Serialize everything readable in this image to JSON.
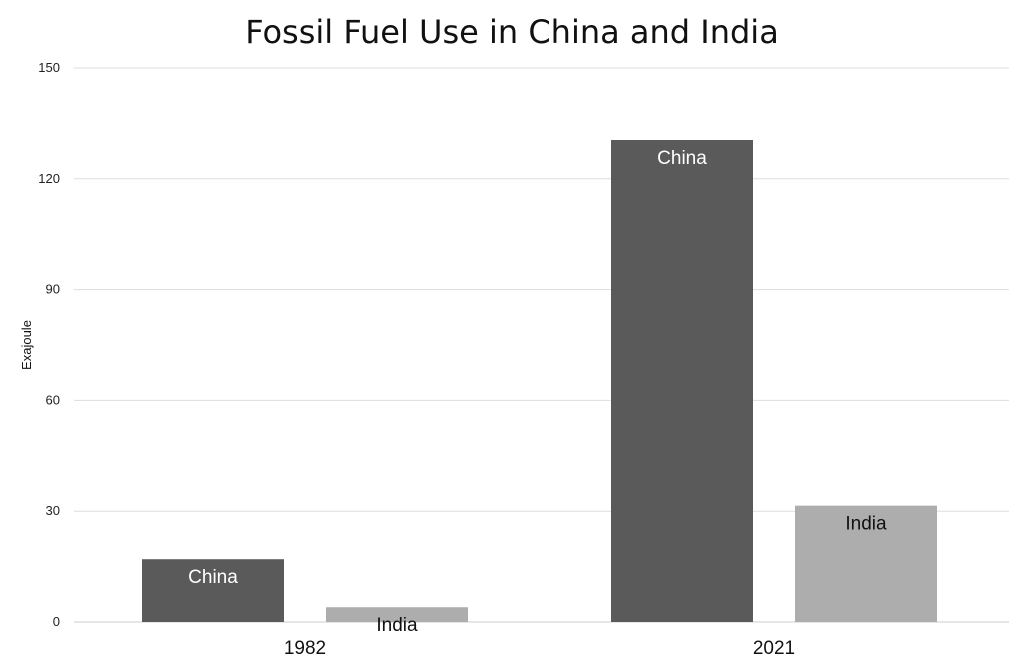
{
  "chart_data": {
    "type": "bar",
    "title": "Fossil Fuel Use in China and India",
    "xlabel": "",
    "ylabel": "Exajoule",
    "ylim": [
      0,
      150
    ],
    "yticks": [
      0,
      30,
      60,
      90,
      120,
      150
    ],
    "grid": true,
    "categories": [
      "1982",
      "2021"
    ],
    "series": [
      {
        "name": "China",
        "color": "#5a5a5a",
        "label_color": "#ffffff",
        "values": [
          17,
          130.5
        ]
      },
      {
        "name": "India",
        "color": "#adadad",
        "label_color": "#111111",
        "values": [
          4,
          31.5
        ]
      }
    ]
  }
}
